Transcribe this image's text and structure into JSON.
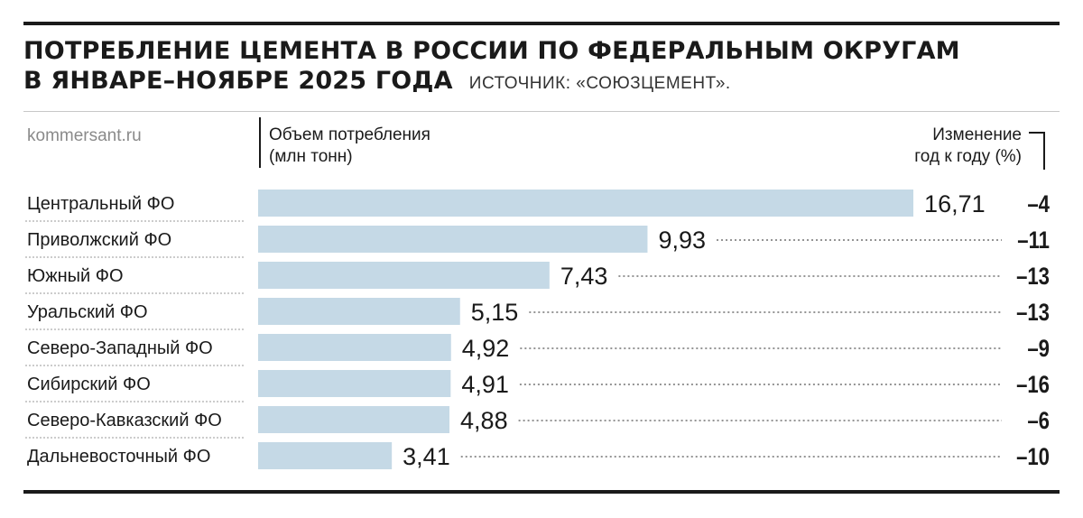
{
  "chart_data": {
    "type": "bar",
    "orientation": "horizontal",
    "title_line1": "ПОТРЕБЛЕНИЕ ЦЕМЕНТА В РОССИИ ПО ФЕДЕРАЛЬНЫМ ОКРУГАМ",
    "title_line2": "В ЯНВАРЕ–НОЯБРЕ 2025 ГОДА",
    "source": "ИСТОЧНИК: «СОЮЗЦЕМЕНТ».",
    "site": "kommersant.ru",
    "volume_label_line1": "Объем потребления",
    "volume_label_line2": "(млн тонн)",
    "change_label_line1": "Изменение",
    "change_label_line2": "год к году (%)",
    "categories": [
      "Центральный ФО",
      "Приволжский ФО",
      "Южный ФО",
      "Уральский ФО",
      "Северо-Западный ФО",
      "Сибирский ФО",
      "Северо-Кавказский ФО",
      "Дальневосточный ФО"
    ],
    "values": [
      16.71,
      9.93,
      7.43,
      5.15,
      4.92,
      4.91,
      4.88,
      3.41
    ],
    "value_labels": [
      "16,71",
      "9,93",
      "7,43",
      "5,15",
      "4,92",
      "4,91",
      "4,88",
      "3,41"
    ],
    "changes": [
      -4,
      -11,
      -13,
      -13,
      -9,
      -16,
      -6,
      -10
    ],
    "change_labels": [
      "–4",
      "–11",
      "–13",
      "–13",
      "–9",
      "–16",
      "–6",
      "–10"
    ],
    "bar_color": "#c5d9e6",
    "grid": false
  }
}
